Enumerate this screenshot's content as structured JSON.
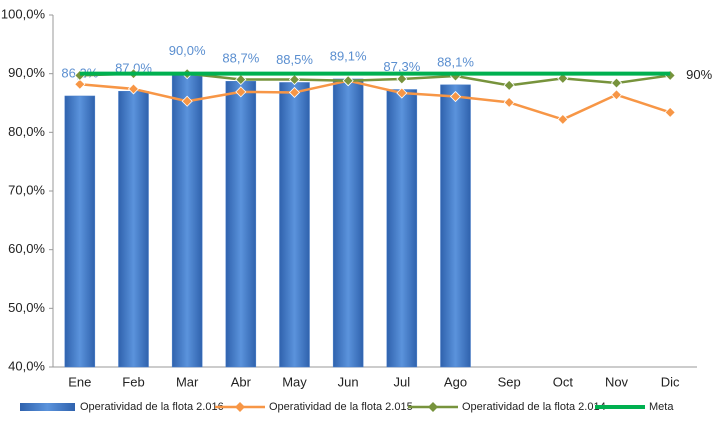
{
  "chart_data": {
    "type": "bar",
    "categories": [
      "Ene",
      "Feb",
      "Mar",
      "Abr",
      "May",
      "Jun",
      "Jul",
      "Ago",
      "Sep",
      "Oct",
      "Nov",
      "Dic"
    ],
    "series": [
      {
        "name": "Operatividad de la flota 2.016",
        "type": "bar",
        "color": "#4a7fcb",
        "values": [
          86.2,
          87.0,
          90.0,
          88.7,
          88.5,
          89.1,
          87.3,
          88.1,
          null,
          null,
          null,
          null
        ],
        "value_labels": [
          "86,2%",
          "87,0%",
          "90,0%",
          "88,7%",
          "88,5%",
          "89,1%",
          "87,3%",
          "88,1%",
          null,
          null,
          null,
          null
        ]
      },
      {
        "name": "Operatividad de la flota 2.015",
        "type": "line",
        "color": "#f79646",
        "marker": "diamond",
        "values": [
          88.2,
          87.4,
          85.3,
          86.9,
          86.8,
          88.8,
          86.7,
          86.1,
          85.1,
          82.2,
          86.4,
          83.4
        ]
      },
      {
        "name": "Operatividad de la flota 2.014",
        "type": "line",
        "color": "#77933c",
        "marker": "diamond",
        "values": [
          89.7,
          90.0,
          90.0,
          89.0,
          89.0,
          88.8,
          89.1,
          89.6,
          88.0,
          89.2,
          88.4,
          89.7
        ]
      },
      {
        "name": "Meta",
        "type": "line",
        "color": "#00b050",
        "values": [
          90,
          90,
          90,
          90,
          90,
          90,
          90,
          90,
          90,
          90,
          90,
          90
        ],
        "value_labels": [
          null,
          null,
          null,
          null,
          null,
          null,
          null,
          null,
          null,
          null,
          null,
          "90%"
        ]
      }
    ],
    "ylim": [
      40,
      100
    ],
    "yticks": [
      {
        "value": 40,
        "label": "40,0%"
      },
      {
        "value": 50,
        "label": "50,0%"
      },
      {
        "value": 60,
        "label": "60,0%"
      },
      {
        "value": 70,
        "label": "70,0%"
      },
      {
        "value": 80,
        "label": "80,0%"
      },
      {
        "value": 90,
        "label": "90,0%"
      },
      {
        "value": 100,
        "label": "100,0%"
      }
    ],
    "grid": false,
    "legend": "bottom"
  }
}
